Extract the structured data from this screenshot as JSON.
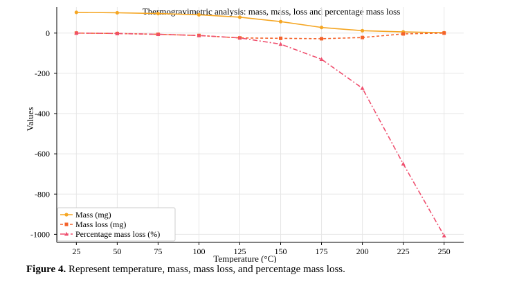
{
  "caption": {
    "label": "Figure 4.",
    "text": " Represent temperature, mass, mass loss, and percentage mass loss."
  },
  "chart_data": {
    "type": "line",
    "title": "Thermogravimetric analysis: mass, mass, loss and percentage mass loss",
    "xlabel": "Temperature (°C)",
    "ylabel": "Values",
    "x": [
      25,
      50,
      75,
      100,
      125,
      150,
      175,
      200,
      225,
      250
    ],
    "ylim": [
      -1040,
      130
    ],
    "yticks": [
      0,
      -200,
      -400,
      -600,
      -800,
      -1000
    ],
    "grid": true,
    "legend_position": "bottom-left",
    "series": [
      {
        "name": "Mass (mg)",
        "color": "#f5a623",
        "style": "solid",
        "marker": "circle",
        "values": [
          103,
          101,
          97,
          91,
          79,
          57,
          28,
          12,
          6,
          2
        ]
      },
      {
        "name": "Mass loss (mg)",
        "color": "#f4622a",
        "style": "dashed",
        "marker": "square",
        "values": [
          0,
          -2,
          -6,
          -12,
          -24,
          -26,
          -28,
          -22,
          -4,
          0
        ]
      },
      {
        "name": "Percentage mass loss (%)",
        "color": "#ef4f6e",
        "style": "dashdot",
        "marker": "triangle",
        "values": [
          0,
          -2,
          -6,
          -12,
          -24,
          -55,
          -130,
          -274,
          -650,
          -1007
        ]
      }
    ]
  }
}
